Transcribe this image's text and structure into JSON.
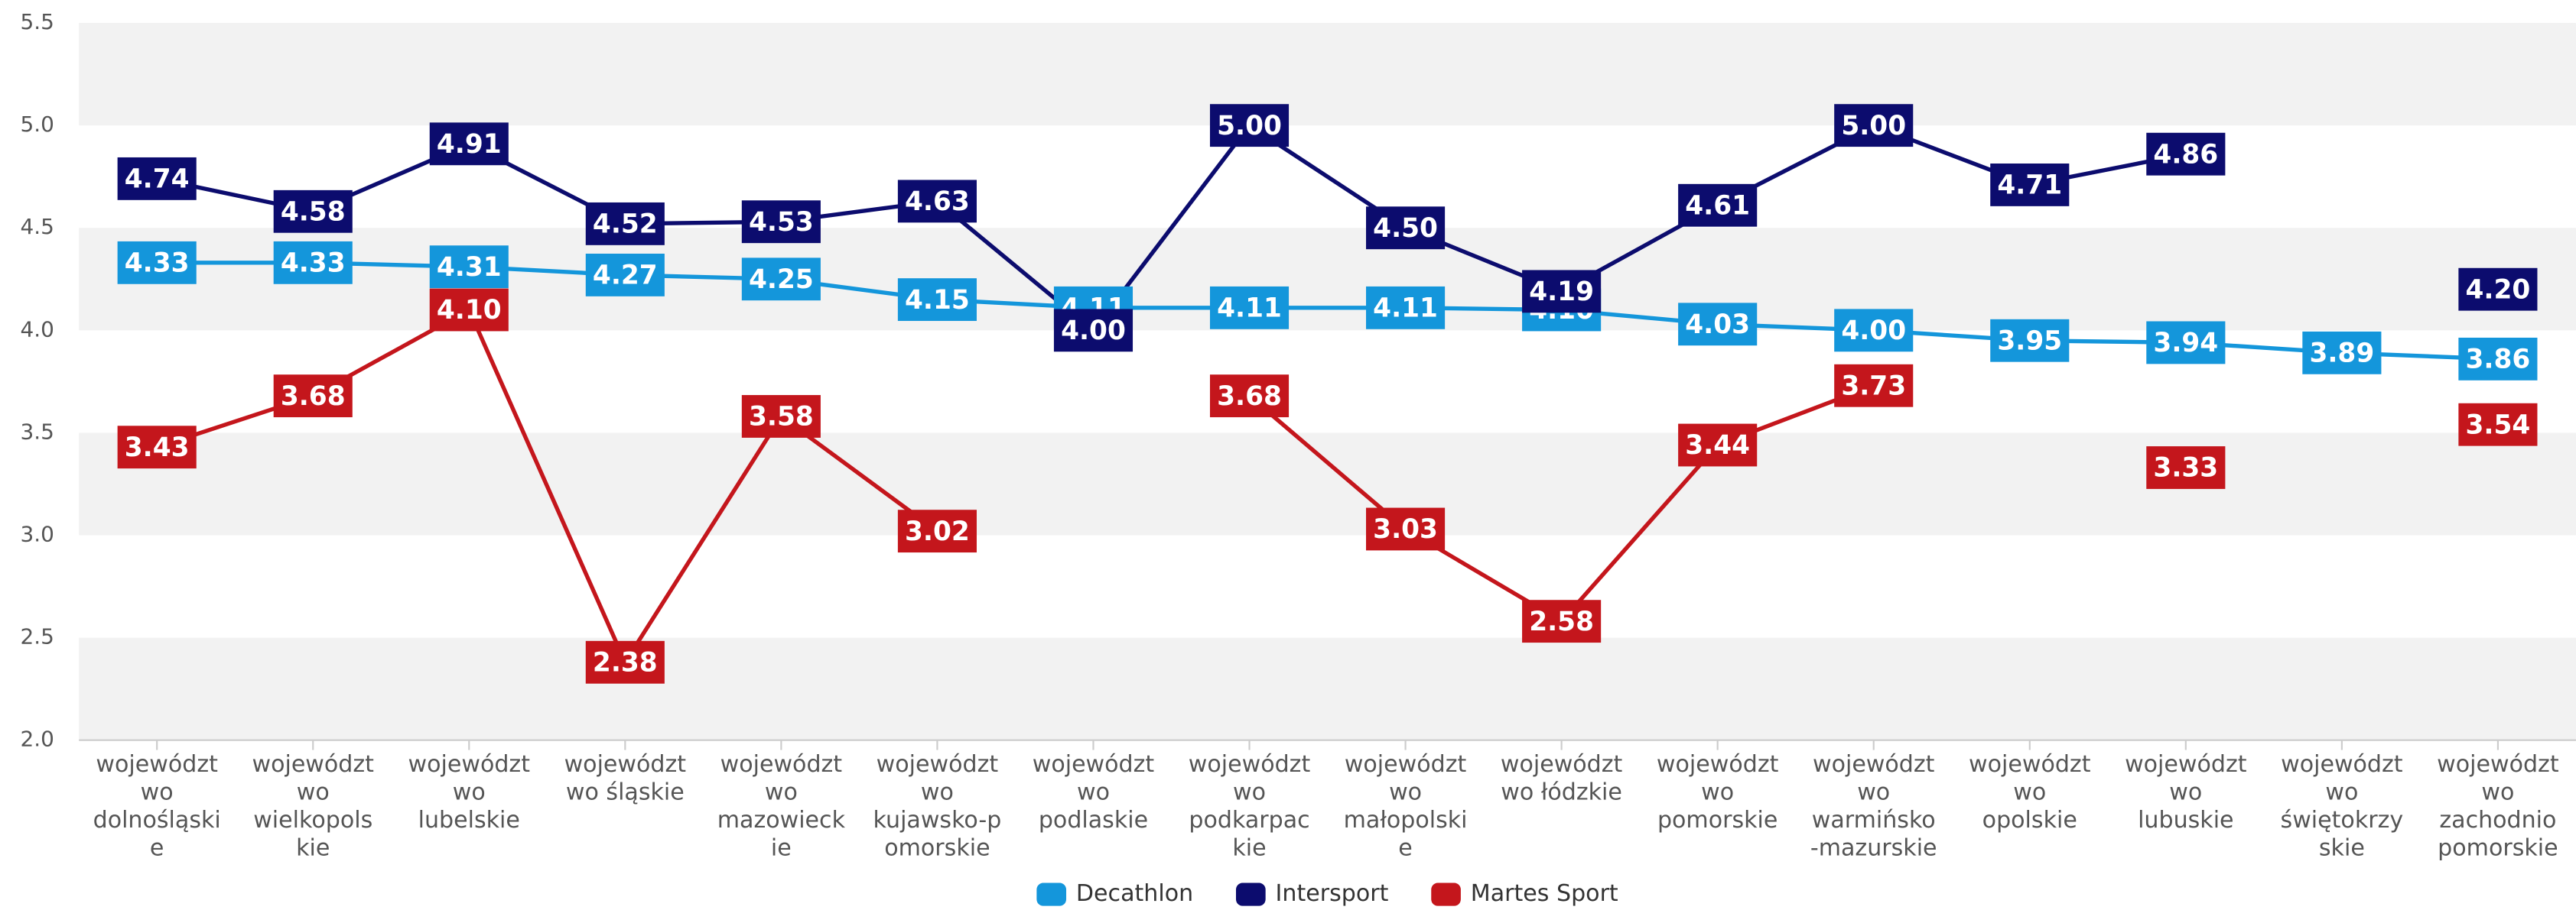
{
  "chart_data": {
    "type": "line",
    "categories": [
      "województwo dolnośląskie",
      "województwo wielkopolskie",
      "województwo lubelskie",
      "województwo śląskie",
      "województwo mazowieckie",
      "województwo kujawsko-pomorskie",
      "województwo podlaskie",
      "województwo podkarpackie",
      "województwo małopolskie",
      "województwo łódzkie",
      "województwo pomorskie",
      "województwo warmińsko-mazurskie",
      "województwo opolskie",
      "województwo lubuskie",
      "województwo świętokrzyskie",
      "województwo zachodniopomorskie"
    ],
    "series": [
      {
        "name": "Decathlon",
        "color": "#1496db",
        "values": [
          4.33,
          4.33,
          4.31,
          4.27,
          4.25,
          4.15,
          4.11,
          4.11,
          4.11,
          4.1,
          4.03,
          4.0,
          3.95,
          3.94,
          3.89,
          3.86
        ],
        "value_labels": [
          "4.33",
          "4.33",
          "4.31",
          "4.27",
          "4.25",
          "4.15",
          "4.11",
          "4.11",
          "4.11",
          "4.10",
          "4.03",
          "4.00",
          "3.95",
          "3.94",
          "3.89",
          "3.86"
        ]
      },
      {
        "name": "Intersport",
        "color": "#0c0c6e",
        "values": [
          4.74,
          4.58,
          4.91,
          4.52,
          4.53,
          4.63,
          4.0,
          5.0,
          4.5,
          4.19,
          4.61,
          5.0,
          4.71,
          4.86,
          null,
          4.2
        ],
        "value_labels": [
          "4.74",
          "4.58",
          "4.91",
          "4.52",
          "4.53",
          "4.63",
          "4.00",
          "5.00",
          "4.50",
          "4.19",
          "4.61",
          "5.00",
          "4.71",
          "4.86",
          null,
          "4.20"
        ]
      },
      {
        "name": "Martes Sport",
        "color": "#c4161c",
        "values": [
          3.43,
          3.68,
          4.1,
          2.38,
          3.58,
          3.02,
          null,
          3.68,
          3.03,
          2.58,
          3.44,
          3.73,
          null,
          3.33,
          null,
          3.54
        ],
        "value_labels": [
          "3.43",
          "3.68",
          "4.10",
          "2.38",
          "3.58",
          "3.02",
          null,
          "3.68",
          "3.03",
          "2.58",
          "3.44",
          "3.73",
          null,
          "3.33",
          null,
          "3.54"
        ]
      }
    ],
    "ylim": [
      2,
      5.5
    ],
    "yticks": [
      {
        "value": 2,
        "label": "2.0"
      },
      2.5,
      {
        "value": 3,
        "label": "3.0"
      },
      3.5,
      {
        "value": 4,
        "label": "4.0"
      },
      4.5,
      {
        "value": 5,
        "label": "5.0"
      },
      5.5
    ],
    "grid": "bands",
    "legend": "bottom"
  }
}
